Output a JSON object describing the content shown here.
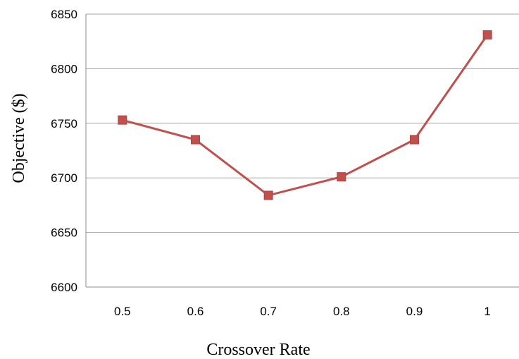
{
  "chart_data": {
    "type": "line",
    "xlabel": "Crossover Rate",
    "ylabel": "Objective ($)",
    "categories": [
      "0.5",
      "0.6",
      "0.7",
      "0.8",
      "0.9",
      "1"
    ],
    "series": [
      {
        "values": [
          6753,
          6735,
          6684,
          6701,
          6735,
          6831
        ],
        "color": "#c0504d",
        "marker": "square"
      }
    ],
    "ylim": [
      6600,
      6850
    ],
    "yticks": [
      "6600",
      "6650",
      "6700",
      "6750",
      "6800",
      "6850"
    ],
    "grid": true,
    "legend": "none"
  }
}
